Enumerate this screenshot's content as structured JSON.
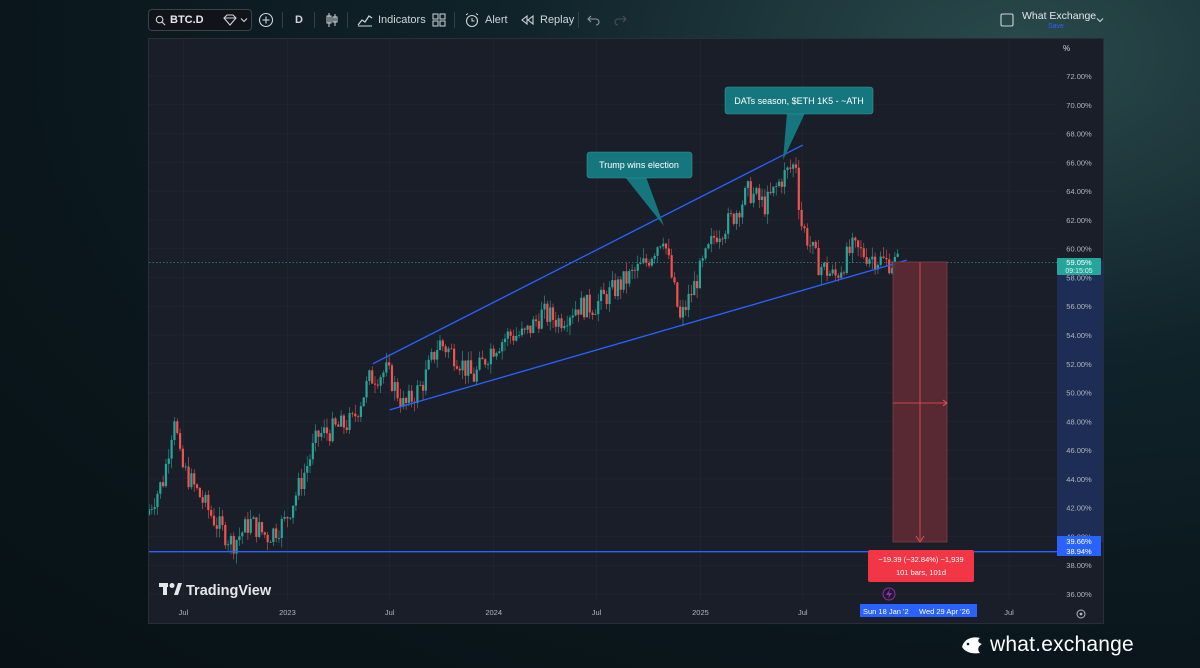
{
  "toolbar": {
    "symbol": "BTC.D",
    "interval": "D",
    "indicators_label": "Indicators",
    "alert_label": "Alert",
    "replay_label": "Replay",
    "layout_name": "What Exchange",
    "layout_status": "Save"
  },
  "axis": {
    "unit": "%",
    "price_ticks": [
      "72.00%",
      "70.00%",
      "68.00%",
      "66.00%",
      "64.00%",
      "62.00%",
      "60.00%",
      "58.00%",
      "56.00%",
      "54.00%",
      "52.00%",
      "50.00%",
      "48.00%",
      "46.00%",
      "44.00%",
      "42.00%",
      "40.00%",
      "38.00%",
      "36.00%"
    ],
    "time_ticks": [
      "Jul",
      "2023",
      "Jul",
      "2024",
      "Jul",
      "2025",
      "Jul",
      "Jul"
    ],
    "current_price_label": "59.05%",
    "countdown_label": "09:15:05",
    "target_label": "39.66%",
    "support_label": "38.94%",
    "date_range_start": "Sun 18 Jan '2",
    "date_range_end": "Wed 29 Apr '26"
  },
  "annotations": {
    "callout_trump": "Trump wins election",
    "callout_dats": "DATs season, $ETH 1K5 - ~ATH",
    "measure_line1": "−19.39 (−32.84%) −1,939",
    "measure_line2": "101 bars, 101d"
  },
  "watermark": {
    "text": "TradingView"
  },
  "brand": {
    "text": "what.exchange"
  },
  "colors": {
    "trendline": "#2962ff",
    "up": "#26a69a",
    "down": "#ef5350",
    "measure_fill": "#5c2a33",
    "callout": "#16767d"
  },
  "chart_data": {
    "type": "candlestick",
    "title": "",
    "ylabel": "%",
    "ylim": [
      35.5,
      74
    ],
    "x_range": [
      "2022-05",
      "2026-07"
    ],
    "approx_path": [
      [
        "2022-05",
        41.5
      ],
      [
        "2022-06",
        44
      ],
      [
        "2022-06-20",
        48.5
      ],
      [
        "2022-07",
        45
      ],
      [
        "2022-08",
        43
      ],
      [
        "2022-09",
        41
      ],
      [
        "2022-10",
        39.5
      ],
      [
        "2022-11",
        41
      ],
      [
        "2022-12",
        40
      ],
      [
        "2023-01",
        41
      ],
      [
        "2023-02",
        44
      ],
      [
        "2023-03",
        47
      ],
      [
        "2023-04",
        47.5
      ],
      [
        "2023-05",
        48
      ],
      [
        "2023-06",
        51
      ],
      [
        "2023-07",
        51.5
      ],
      [
        "2023-08",
        49
      ],
      [
        "2023-09",
        50.5
      ],
      [
        "2023-10",
        53.5
      ],
      [
        "2023-11",
        52.5
      ],
      [
        "2023-12",
        51
      ],
      [
        "2024-01",
        53
      ],
      [
        "2024-02",
        54
      ],
      [
        "2024-03",
        54
      ],
      [
        "2024-04",
        55.5
      ],
      [
        "2024-05",
        55
      ],
      [
        "2024-06",
        56
      ],
      [
        "2024-07",
        56
      ],
      [
        "2024-08",
        57
      ],
      [
        "2024-09",
        58
      ],
      [
        "2024-10",
        59
      ],
      [
        "2024-11",
        61
      ],
      [
        "2024-12",
        55
      ],
      [
        "2025-01",
        58
      ],
      [
        "2025-02",
        61
      ],
      [
        "2025-03",
        62
      ],
      [
        "2025-04",
        64
      ],
      [
        "2025-05",
        63
      ],
      [
        "2025-06",
        65
      ],
      [
        "2025-06-25",
        66
      ],
      [
        "2025-07",
        62
      ],
      [
        "2025-08",
        59
      ],
      [
        "2025-09",
        58
      ],
      [
        "2025-10",
        60
      ],
      [
        "2025-11",
        59.5
      ],
      [
        "2025-12",
        59.05
      ]
    ],
    "trendlines": {
      "upper": [
        [
          "2023-06",
          52
        ],
        [
          "2025-07",
          67.2
        ]
      ],
      "lower": [
        [
          "2023-07",
          48.8
        ],
        [
          "2026-01",
          59.2
        ]
      ],
      "support": 38.94
    },
    "measurement": {
      "from": 59.05,
      "to": 39.66,
      "change": -19.39,
      "change_pct": -32.84,
      "bars": 101
    }
  }
}
